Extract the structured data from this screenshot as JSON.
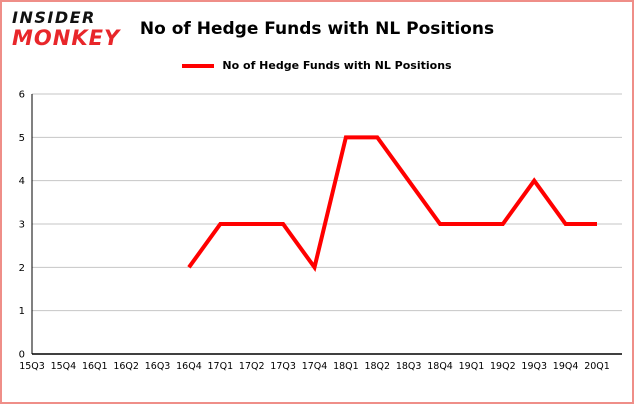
{
  "logo": {
    "line1": "INSIDER",
    "line2": "MONKEY"
  },
  "title": "No of Hedge Funds with NL Positions",
  "legend": {
    "label": "No of Hedge Funds with NL Positions",
    "color": "#ff0000"
  },
  "colors": {
    "line": "#ff0000",
    "grid": "#c6c6c6",
    "axis": "#000000",
    "border": "#ef8e88",
    "background": "#ffffff"
  },
  "chart_data": {
    "type": "line",
    "title": "No of Hedge Funds with NL Positions",
    "categories": [
      "15Q3",
      "15Q4",
      "16Q1",
      "16Q2",
      "16Q3",
      "16Q4",
      "17Q1",
      "17Q2",
      "17Q3",
      "17Q4",
      "18Q1",
      "18Q2",
      "18Q3",
      "18Q4",
      "19Q1",
      "19Q2",
      "19Q3",
      "19Q4",
      "20Q1"
    ],
    "series": [
      {
        "name": "No of Hedge Funds with NL Positions",
        "color": "#ff0000",
        "values": [
          null,
          null,
          null,
          null,
          null,
          2,
          3,
          3,
          3,
          2,
          5,
          5,
          4,
          3,
          3,
          3,
          4,
          3,
          3
        ]
      }
    ],
    "xlabel": "",
    "ylabel": "",
    "ylim": [
      0,
      6
    ],
    "yticks": [
      0,
      1,
      2,
      3,
      4,
      5,
      6
    ],
    "grid": true,
    "legend_position": "top"
  }
}
